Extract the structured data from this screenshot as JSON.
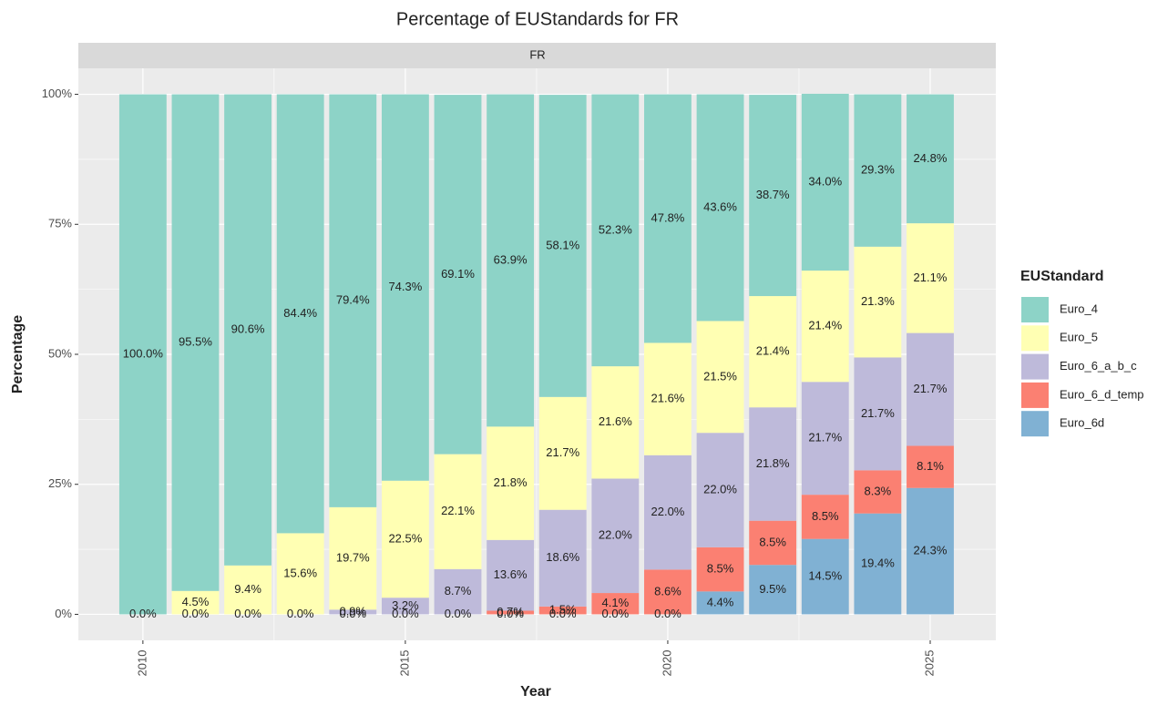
{
  "chart_data": {
    "type": "bar",
    "stacked": true,
    "title": "Percentage of EUStandards for FR",
    "facet": "FR",
    "x_label": "Year",
    "y_label": "Percentage",
    "legend_title": "EUStandard",
    "legend": "right",
    "grid": true,
    "x": [
      2010,
      2011,
      2012,
      2013,
      2014,
      2015,
      2016,
      2017,
      2018,
      2019,
      2020,
      2021,
      2022,
      2023,
      2024,
      2025
    ],
    "xlim": [
      2008.77,
      2026.25
    ],
    "xticks": [
      2010,
      2015,
      2020,
      2025
    ],
    "ylim": [
      -5,
      105
    ],
    "yticks": [
      {
        "value": 0,
        "label": "0%"
      },
      {
        "value": 25,
        "label": "25%"
      },
      {
        "value": 50,
        "label": "50%"
      },
      {
        "value": 75,
        "label": "75%"
      },
      {
        "value": 100,
        "label": "100%"
      }
    ],
    "series": [
      {
        "name": "Euro_6d",
        "color": "#80b1d3",
        "values": [
          null,
          null,
          null,
          null,
          null,
          null,
          null,
          0.0,
          0.0,
          0.0,
          0.0,
          4.4,
          9.5,
          14.5,
          19.4,
          24.3
        ],
        "value_labels": [
          null,
          null,
          null,
          null,
          null,
          null,
          null,
          "0.0%",
          "0.0%",
          "0.0%",
          "0.0%",
          "4.4%",
          "9.5%",
          "14.5%",
          "19.4%",
          "24.3%"
        ]
      },
      {
        "name": "Euro_6_d_temp",
        "color": "#fb8072",
        "values": [
          null,
          null,
          null,
          null,
          0.0,
          0.0,
          0.0,
          0.7,
          1.5,
          4.1,
          8.6,
          8.5,
          8.5,
          8.5,
          8.3,
          8.1
        ],
        "value_labels": [
          null,
          null,
          null,
          null,
          "0.0%",
          "0.0%",
          "0.0%",
          "0.7%",
          "1.5%",
          "4.1%",
          "8.6%",
          "8.5%",
          "8.5%",
          "8.5%",
          "8.3%",
          "8.1%"
        ]
      },
      {
        "name": "Euro_6_a_b_c",
        "color": "#bebada",
        "values": [
          null,
          0.0,
          0.0,
          0.0,
          0.9,
          3.2,
          8.7,
          13.6,
          18.6,
          22.0,
          22.0,
          22.0,
          21.8,
          21.7,
          21.7,
          21.7
        ],
        "value_labels": [
          null,
          "0.0%",
          "0.0%",
          "0.0%",
          "0.9%",
          "3.2%",
          "8.7%",
          "13.6%",
          "18.6%",
          "22.0%",
          "22.0%",
          "22.0%",
          "21.8%",
          "21.7%",
          "21.7%",
          "21.7%"
        ]
      },
      {
        "name": "Euro_5",
        "color": "#ffffb3",
        "values": [
          0.0,
          4.5,
          9.4,
          15.6,
          19.7,
          22.5,
          22.1,
          21.8,
          21.7,
          21.6,
          21.6,
          21.5,
          21.4,
          21.4,
          21.3,
          21.1
        ],
        "value_labels": [
          "0.0%",
          "4.5%",
          "9.4%",
          "15.6%",
          "19.7%",
          "22.5%",
          "22.1%",
          "21.8%",
          "21.7%",
          "21.6%",
          "21.6%",
          "21.5%",
          "21.4%",
          "21.4%",
          "21.3%",
          "21.1%"
        ]
      },
      {
        "name": "Euro_4",
        "color": "#8dd3c7",
        "values": [
          100.0,
          95.5,
          90.6,
          84.4,
          79.4,
          74.3,
          69.1,
          63.9,
          58.1,
          52.3,
          47.8,
          43.6,
          38.7,
          34.0,
          29.3,
          24.8
        ],
        "value_labels": [
          "100.0%",
          "95.5%",
          "90.6%",
          "84.4%",
          "79.4%",
          "74.3%",
          "69.1%",
          "63.9%",
          "58.1%",
          "52.3%",
          "47.8%",
          "43.6%",
          "38.7%",
          "34.0%",
          "29.3%",
          "24.8%"
        ]
      }
    ]
  }
}
